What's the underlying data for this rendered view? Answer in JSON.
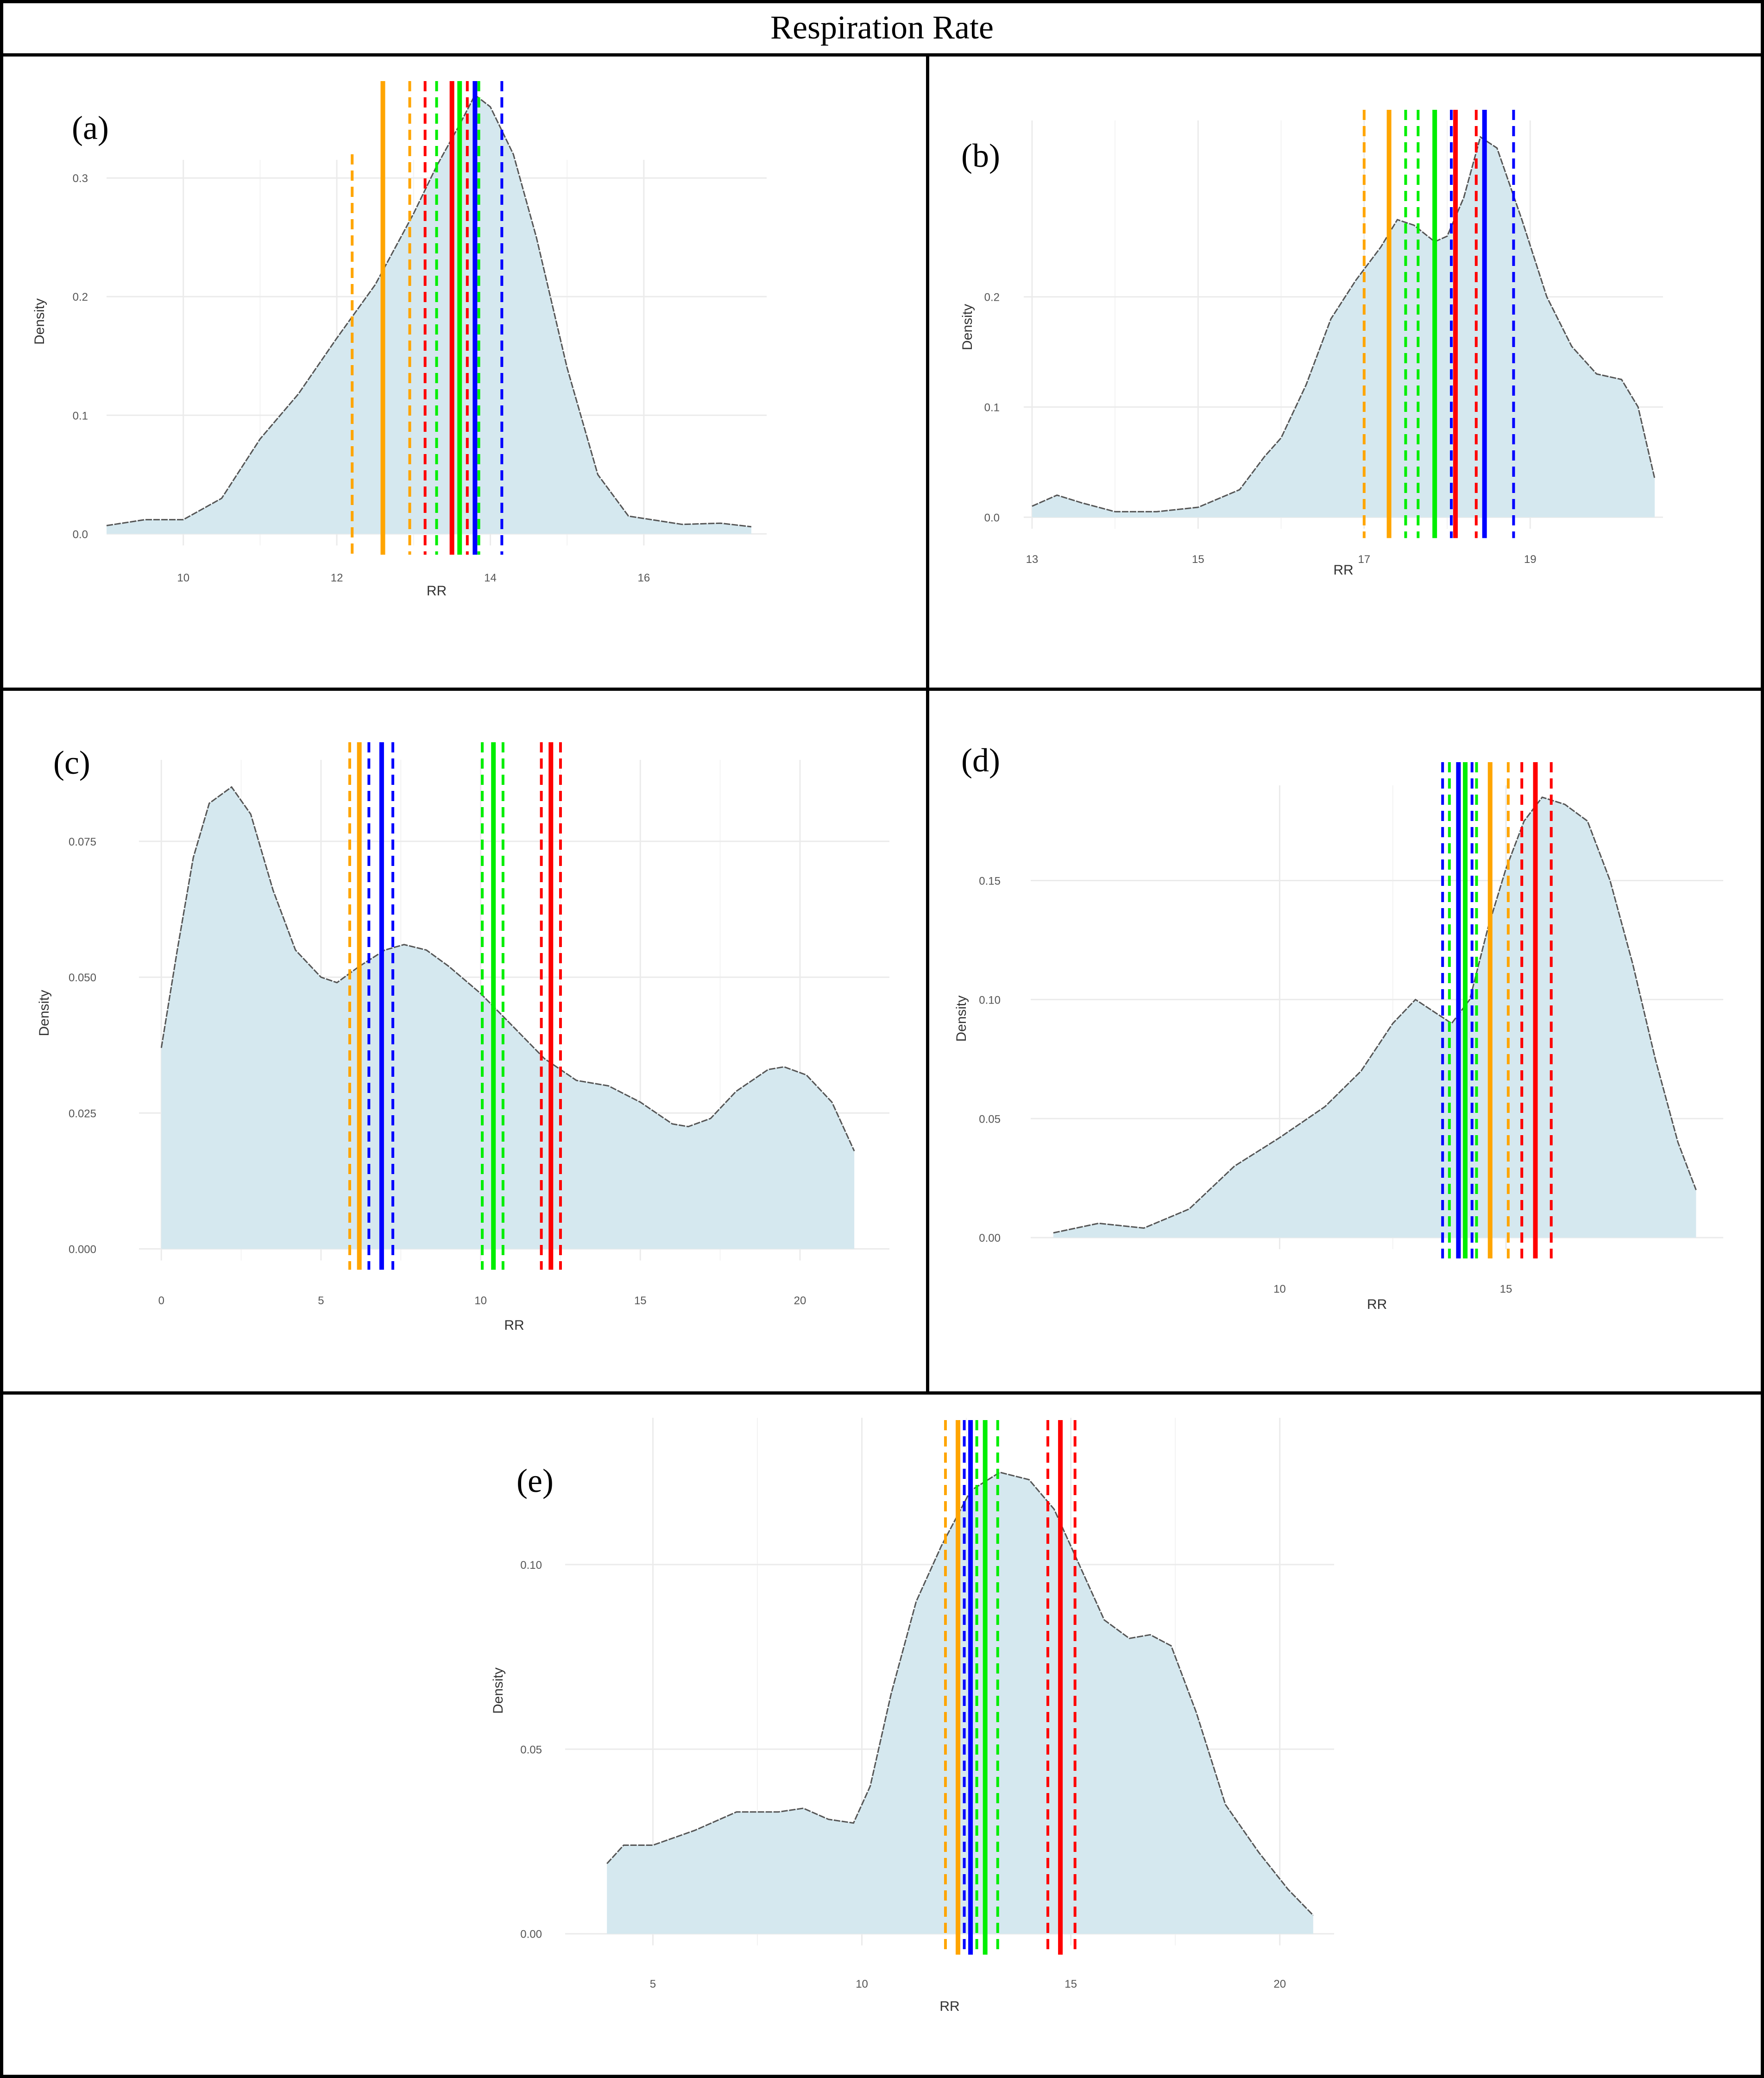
{
  "figure_title": "Respiration Rate",
  "colors": {
    "fill": "#d5e8ef",
    "curve": "#555555",
    "grid": "#ebebeb",
    "orange": "#ffa500",
    "red": "#ff0000",
    "green": "#00ee00",
    "blue": "#0000ff"
  },
  "chart_data": [
    {
      "panel": "(a)",
      "type": "density",
      "xlabel": "RR",
      "ylabel": "Density",
      "xlim": [
        9.0,
        17.6
      ],
      "ylim": [
        -0.012,
        0.37
      ],
      "xticks": [
        10,
        12,
        14,
        16
      ],
      "yticks": [
        0.0,
        0.1,
        0.2,
        0.3
      ],
      "ytick_labels": [
        "0.0",
        "0.1",
        "0.2",
        "0.3"
      ],
      "curve": [
        [
          9.0,
          0.007
        ],
        [
          9.5,
          0.012
        ],
        [
          10.0,
          0.012
        ],
        [
          10.5,
          0.03
        ],
        [
          11.0,
          0.08
        ],
        [
          11.5,
          0.118
        ],
        [
          12.0,
          0.165
        ],
        [
          12.5,
          0.21
        ],
        [
          13.0,
          0.27
        ],
        [
          13.3,
          0.31
        ],
        [
          13.6,
          0.345
        ],
        [
          13.8,
          0.37
        ],
        [
          14.0,
          0.36
        ],
        [
          14.3,
          0.32
        ],
        [
          14.6,
          0.25
        ],
        [
          15.0,
          0.14
        ],
        [
          15.4,
          0.05
        ],
        [
          15.8,
          0.015
        ],
        [
          16.5,
          0.008
        ],
        [
          17.0,
          0.009
        ],
        [
          17.4,
          0.006
        ]
      ],
      "vlines": [
        {
          "color": "orange",
          "style": "dashed",
          "x": 12.2,
          "top": 0.32
        },
        {
          "color": "orange",
          "style": "solid",
          "x": 12.6
        },
        {
          "color": "orange",
          "style": "dashed",
          "x": 12.95
        },
        {
          "color": "red",
          "style": "dashed",
          "x": 13.15
        },
        {
          "color": "green",
          "style": "dashed",
          "x": 13.3
        },
        {
          "color": "red",
          "style": "solid",
          "x": 13.5
        },
        {
          "color": "green",
          "style": "solid",
          "x": 13.6
        },
        {
          "color": "red",
          "style": "dashed",
          "x": 13.7
        },
        {
          "color": "green",
          "style": "dashed",
          "x": 13.85
        },
        {
          "color": "blue",
          "style": "solid",
          "x": 13.8
        },
        {
          "color": "blue",
          "style": "dashed",
          "x": 14.15
        }
      ]
    },
    {
      "panel": "(b)",
      "type": "density",
      "xlabel": "RR",
      "ylabel": "Density",
      "xlim": [
        12.9,
        20.6
      ],
      "ylim": [
        -0.015,
        0.36
      ],
      "xticks": [
        13,
        15,
        17,
        19
      ],
      "yticks": [
        0.0,
        0.1,
        0.2
      ],
      "ytick_labels": [
        "0.0",
        "0.1",
        "0.2"
      ],
      "curve": [
        [
          13.0,
          0.01
        ],
        [
          13.3,
          0.02
        ],
        [
          13.6,
          0.013
        ],
        [
          14.0,
          0.005
        ],
        [
          14.5,
          0.005
        ],
        [
          15.0,
          0.009
        ],
        [
          15.5,
          0.025
        ],
        [
          15.8,
          0.055
        ],
        [
          16.0,
          0.072
        ],
        [
          16.3,
          0.12
        ],
        [
          16.6,
          0.18
        ],
        [
          16.9,
          0.215
        ],
        [
          17.2,
          0.245
        ],
        [
          17.4,
          0.27
        ],
        [
          17.6,
          0.265
        ],
        [
          17.85,
          0.25
        ],
        [
          18.0,
          0.255
        ],
        [
          18.2,
          0.29
        ],
        [
          18.4,
          0.345
        ],
        [
          18.6,
          0.335
        ],
        [
          18.9,
          0.27
        ],
        [
          19.2,
          0.2
        ],
        [
          19.5,
          0.155
        ],
        [
          19.8,
          0.13
        ],
        [
          20.1,
          0.125
        ],
        [
          20.3,
          0.1
        ],
        [
          20.5,
          0.035
        ]
      ],
      "vlines": [
        {
          "color": "orange",
          "style": "dashed",
          "x": 17.0
        },
        {
          "color": "orange",
          "style": "solid",
          "x": 17.3
        },
        {
          "color": "green",
          "style": "dashed",
          "x": 17.5
        },
        {
          "color": "green",
          "style": "dashed",
          "x": 17.65
        },
        {
          "color": "green",
          "style": "solid",
          "x": 17.85
        },
        {
          "color": "blue",
          "style": "dashed",
          "x": 18.05
        },
        {
          "color": "red",
          "style": "solid",
          "x": 18.1
        },
        {
          "color": "red",
          "style": "dashed",
          "x": 18.35
        },
        {
          "color": "blue",
          "style": "solid",
          "x": 18.45
        },
        {
          "color": "blue",
          "style": "dashed",
          "x": 18.8
        }
      ]
    },
    {
      "panel": "(c)",
      "type": "density",
      "xlabel": "RR",
      "ylabel": "Density",
      "xlim": [
        -0.7,
        22.8
      ],
      "ylim": [
        -0.0032,
        0.09
      ],
      "xticks": [
        0,
        5,
        10,
        15,
        20
      ],
      "yticks": [
        0.0,
        0.025,
        0.05,
        0.075
      ],
      "ytick_labels": [
        "0.000",
        "0.025",
        "0.050",
        "0.075"
      ],
      "curve": [
        [
          0.0,
          0.037
        ],
        [
          0.5,
          0.055
        ],
        [
          1.0,
          0.072
        ],
        [
          1.5,
          0.082
        ],
        [
          2.2,
          0.085
        ],
        [
          2.8,
          0.08
        ],
        [
          3.5,
          0.066
        ],
        [
          4.2,
          0.055
        ],
        [
          5.0,
          0.05
        ],
        [
          5.5,
          0.049
        ],
        [
          6.2,
          0.052
        ],
        [
          7.0,
          0.055
        ],
        [
          7.6,
          0.056
        ],
        [
          8.3,
          0.055
        ],
        [
          9.0,
          0.052
        ],
        [
          10.0,
          0.047
        ],
        [
          11.0,
          0.041
        ],
        [
          12.0,
          0.035
        ],
        [
          13.0,
          0.031
        ],
        [
          14.0,
          0.03
        ],
        [
          15.0,
          0.027
        ],
        [
          16.0,
          0.023
        ],
        [
          16.5,
          0.0225
        ],
        [
          17.2,
          0.024
        ],
        [
          18.0,
          0.029
        ],
        [
          19.0,
          0.033
        ],
        [
          19.5,
          0.0335
        ],
        [
          20.2,
          0.032
        ],
        [
          21.0,
          0.027
        ],
        [
          21.7,
          0.018
        ]
      ],
      "vlines": [
        {
          "color": "orange",
          "style": "dashed",
          "x": 5.9
        },
        {
          "color": "orange",
          "style": "solid",
          "x": 6.2
        },
        {
          "color": "blue",
          "style": "dashed",
          "x": 6.5
        },
        {
          "color": "blue",
          "style": "solid",
          "x": 6.9
        },
        {
          "color": "blue",
          "style": "dashed",
          "x": 7.25
        },
        {
          "color": "green",
          "style": "dashed",
          "x": 10.05
        },
        {
          "color": "green",
          "style": "solid",
          "x": 10.4
        },
        {
          "color": "green",
          "style": "dashed",
          "x": 10.7
        },
        {
          "color": "red",
          "style": "dashed",
          "x": 11.9
        },
        {
          "color": "red",
          "style": "solid",
          "x": 12.2
        },
        {
          "color": "red",
          "style": "dashed",
          "x": 12.5
        }
      ]
    },
    {
      "panel": "(d)",
      "type": "density",
      "xlabel": "RR",
      "ylabel": "Density",
      "xlim": [
        4.5,
        19.8
      ],
      "ylim": [
        -0.006,
        0.19
      ],
      "xticks": [
        10,
        15
      ],
      "yticks": [
        0.0,
        0.05,
        0.1,
        0.15
      ],
      "ytick_labels": [
        "0.00",
        "0.05",
        "0.10",
        "0.15"
      ],
      "curve": [
        [
          5.0,
          0.002
        ],
        [
          6.0,
          0.006
        ],
        [
          7.0,
          0.004
        ],
        [
          8.0,
          0.012
        ],
        [
          9.0,
          0.03
        ],
        [
          10.0,
          0.042
        ],
        [
          11.0,
          0.055
        ],
        [
          11.8,
          0.07
        ],
        [
          12.5,
          0.09
        ],
        [
          13.0,
          0.1
        ],
        [
          13.4,
          0.095
        ],
        [
          13.8,
          0.09
        ],
        [
          14.2,
          0.1
        ],
        [
          14.6,
          0.13
        ],
        [
          15.0,
          0.155
        ],
        [
          15.4,
          0.175
        ],
        [
          15.8,
          0.185
        ],
        [
          16.3,
          0.182
        ],
        [
          16.8,
          0.175
        ],
        [
          17.3,
          0.15
        ],
        [
          17.8,
          0.115
        ],
        [
          18.3,
          0.075
        ],
        [
          18.8,
          0.04
        ],
        [
          19.2,
          0.02
        ]
      ],
      "vlines": [
        {
          "color": "blue",
          "style": "dashed",
          "x": 13.6
        },
        {
          "color": "green",
          "style": "dashed",
          "x": 13.75
        },
        {
          "color": "blue",
          "style": "solid",
          "x": 13.95
        },
        {
          "color": "green",
          "style": "solid",
          "x": 14.1
        },
        {
          "color": "blue",
          "style": "dashed",
          "x": 14.25
        },
        {
          "color": "green",
          "style": "dashed",
          "x": 14.35
        },
        {
          "color": "orange",
          "style": "solid",
          "x": 14.65
        },
        {
          "color": "orange",
          "style": "dashed",
          "x": 15.05
        },
        {
          "color": "red",
          "style": "dashed",
          "x": 15.35
        },
        {
          "color": "red",
          "style": "solid",
          "x": 15.65
        },
        {
          "color": "red",
          "style": "dashed",
          "x": 16.0
        }
      ]
    },
    {
      "panel": "(e)",
      "type": "density",
      "xlabel": "RR",
      "ylabel": "Density",
      "xlim": [
        2.9,
        21.3
      ],
      "ylim": [
        -0.0043,
        0.136
      ],
      "xticks": [
        5,
        10,
        15,
        20
      ],
      "yticks": [
        0.0,
        0.05,
        0.1
      ],
      "ytick_labels": [
        "0.00",
        "0.05",
        "0.10"
      ],
      "curve": [
        [
          3.9,
          0.019
        ],
        [
          4.3,
          0.024
        ],
        [
          5.0,
          0.024
        ],
        [
          6.0,
          0.028
        ],
        [
          7.0,
          0.033
        ],
        [
          8.0,
          0.033
        ],
        [
          8.6,
          0.034
        ],
        [
          9.2,
          0.031
        ],
        [
          9.8,
          0.03
        ],
        [
          10.2,
          0.04
        ],
        [
          10.7,
          0.065
        ],
        [
          11.3,
          0.09
        ],
        [
          11.9,
          0.105
        ],
        [
          12.6,
          0.12
        ],
        [
          13.3,
          0.125
        ],
        [
          14.0,
          0.123
        ],
        [
          14.6,
          0.115
        ],
        [
          15.2,
          0.1
        ],
        [
          15.8,
          0.085
        ],
        [
          16.4,
          0.08
        ],
        [
          16.9,
          0.081
        ],
        [
          17.4,
          0.078
        ],
        [
          18.0,
          0.06
        ],
        [
          18.7,
          0.035
        ],
        [
          19.5,
          0.022
        ],
        [
          20.2,
          0.012
        ],
        [
          20.8,
          0.005
        ]
      ],
      "vlines": [
        {
          "color": "orange",
          "style": "dashed",
          "x": 12.0
        },
        {
          "color": "orange",
          "style": "solid",
          "x": 12.3
        },
        {
          "color": "blue",
          "style": "dashed",
          "x": 12.45
        },
        {
          "color": "blue",
          "style": "solid",
          "x": 12.6
        },
        {
          "color": "green",
          "style": "dashed",
          "x": 12.75
        },
        {
          "color": "green",
          "style": "solid",
          "x": 12.95
        },
        {
          "color": "green",
          "style": "dashed",
          "x": 13.25
        },
        {
          "color": "red",
          "style": "dashed",
          "x": 14.45
        },
        {
          "color": "red",
          "style": "solid",
          "x": 14.75
        },
        {
          "color": "red",
          "style": "dashed",
          "x": 15.1
        }
      ]
    }
  ]
}
